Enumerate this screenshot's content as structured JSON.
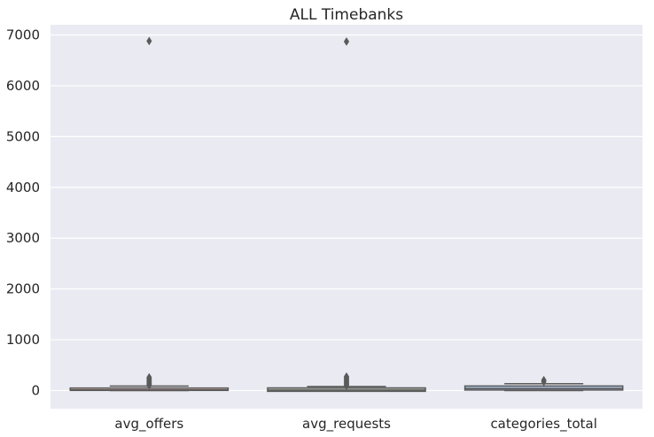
{
  "chart_data": {
    "type": "box",
    "title": "ALL Timebanks",
    "xlabel": "",
    "ylabel": "",
    "categories": [
      "avg_offers",
      "avg_requests",
      "categories_total"
    ],
    "ylim": [
      -350,
      7250
    ],
    "yticks": [
      0,
      1000,
      2000,
      3000,
      4000,
      5000,
      6000,
      7000
    ],
    "ytick_labels": [
      "0",
      "1000",
      "2000",
      "3000",
      "4000",
      "5000",
      "6000",
      "7000"
    ],
    "grid": true,
    "background": "#eaeaf2",
    "box_colors": [
      "#c9a9a0",
      "#a8b7a6",
      "#a9bbd9"
    ],
    "edge_color": "#5a5a5a",
    "boxes": [
      {
        "name": "avg_offers",
        "whisker_low": 0,
        "q1": 3,
        "median": 12,
        "q3": 50,
        "whisker_high": 90,
        "outliers": [
          100,
          120,
          140,
          160,
          180,
          200,
          220,
          240,
          260,
          6880
        ]
      },
      {
        "name": "avg_requests",
        "whisker_low": 0,
        "q1": 2,
        "median": 8,
        "q3": 35,
        "whisker_high": 80,
        "outliers": [
          95,
          115,
          135,
          155,
          175,
          195,
          215,
          235,
          255,
          275,
          6870
        ]
      },
      {
        "name": "categories_total",
        "whisker_low": 0,
        "q1": 10,
        "median": 40,
        "q3": 90,
        "whisker_high": 135,
        "outliers": [
          175,
          205
        ]
      }
    ]
  }
}
